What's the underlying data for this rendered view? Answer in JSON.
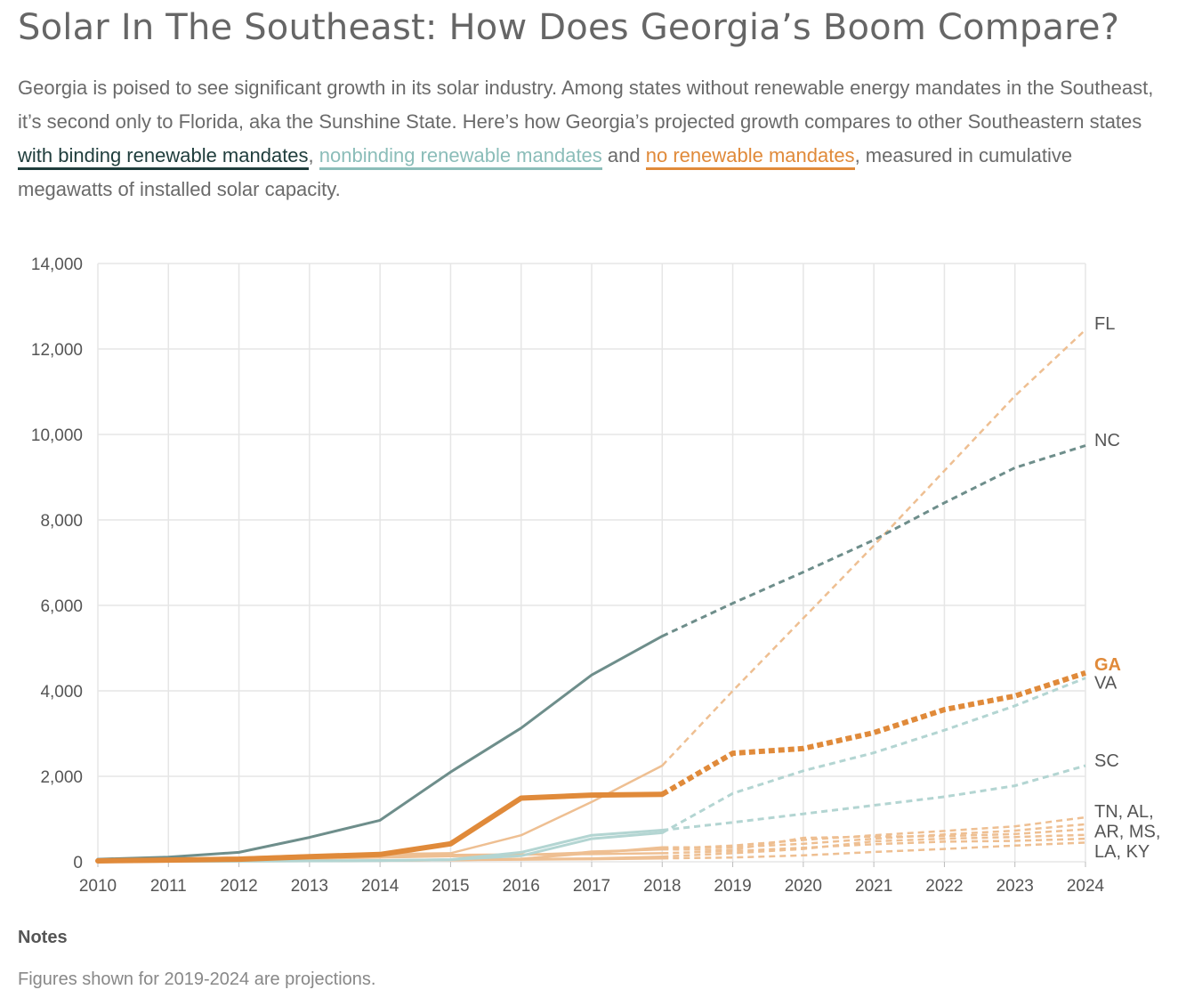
{
  "title": "Solar In The Southeast: How Does Georgia’s Boom Compare?",
  "intro": {
    "text_1": "Georgia is poised to see significant growth in its solar industry. Among states without renewable energy mandates in the Southeast, it’s second only to Florida, aka the Sunshine State. Here’s how Georgia’s projected growth compares to other Southeastern states ",
    "link_binding": "with binding renewable mandates",
    "sep_1": ", ",
    "link_nonbinding": "nonbinding renewable mandates",
    "sep_2": " and ",
    "link_none": "no renewable mandates",
    "text_2": ", measured in cumulative megawatts of installed solar capacity."
  },
  "colors": {
    "binding": "#6e8e8b",
    "binding_link": "#1f3d3c",
    "nonbinding": "#b3d5d2",
    "nonbinding_link": "#8bbdb9",
    "none": "#eebf92",
    "georgia": "#e08a3a",
    "label": "#555555",
    "grid": "#e6e6e6"
  },
  "chart_data": {
    "type": "line",
    "x": [
      2010,
      2011,
      2012,
      2013,
      2014,
      2015,
      2016,
      2017,
      2018,
      2019,
      2020,
      2021,
      2022,
      2023,
      2024
    ],
    "projection_start": 2018,
    "ylim": [
      0,
      14000
    ],
    "yticks": [
      0,
      2000,
      4000,
      6000,
      8000,
      10000,
      12000,
      14000
    ],
    "ytick_labels": [
      "0",
      "2,000",
      "4,000",
      "6,000",
      "8,000",
      "10,000",
      "12,000",
      "14,000"
    ],
    "xtick_labels": [
      "2010",
      "2011",
      "2012",
      "2013",
      "2014",
      "2015",
      "2016",
      "2017",
      "2018",
      "2019",
      "2020",
      "2021",
      "2022",
      "2023",
      "2024"
    ],
    "grid": true,
    "series": [
      {
        "name": "FL",
        "group": "none",
        "values": [
          40,
          60,
          100,
          150,
          180,
          200,
          620,
          1400,
          2250,
          4000,
          5700,
          7400,
          9150,
          10900,
          12450
        ]
      },
      {
        "name": "NC",
        "group": "binding",
        "values": [
          60,
          110,
          220,
          570,
          970,
          2100,
          3130,
          4370,
          5280,
          6050,
          6780,
          7530,
          8400,
          9220,
          9740
        ]
      },
      {
        "name": "GA",
        "group": "georgia",
        "values": [
          20,
          40,
          60,
          120,
          170,
          420,
          1490,
          1560,
          1580,
          2540,
          2650,
          3020,
          3560,
          3880,
          4420
        ]
      },
      {
        "name": "VA",
        "group": "nonbinding",
        "values": [
          5,
          10,
          15,
          20,
          30,
          50,
          140,
          540,
          680,
          1600,
          2130,
          2550,
          3080,
          3650,
          4300
        ]
      },
      {
        "name": "SC",
        "group": "nonbinding",
        "values": [
          5,
          10,
          15,
          20,
          30,
          50,
          220,
          620,
          740,
          920,
          1120,
          1320,
          1520,
          1780,
          2250
        ]
      },
      {
        "name": "TN",
        "group": "none",
        "values": [
          10,
          20,
          40,
          70,
          100,
          130,
          160,
          220,
          300,
          380,
          510,
          620,
          720,
          830,
          1040
        ]
      },
      {
        "name": "AL",
        "group": "none",
        "values": [
          5,
          10,
          15,
          20,
          30,
          40,
          70,
          200,
          340,
          340,
          420,
          540,
          640,
          730,
          880
        ]
      },
      {
        "name": "AR",
        "group": "none",
        "values": [
          5,
          10,
          15,
          20,
          30,
          40,
          60,
          240,
          290,
          280,
          560,
          590,
          600,
          650,
          760
        ]
      },
      {
        "name": "MS",
        "group": "none",
        "values": [
          5,
          10,
          15,
          20,
          30,
          40,
          60,
          80,
          120,
          200,
          300,
          480,
          540,
          580,
          630
        ]
      },
      {
        "name": "LA",
        "group": "none",
        "values": [
          20,
          40,
          80,
          120,
          150,
          160,
          170,
          180,
          200,
          250,
          330,
          410,
          470,
          490,
          540
        ]
      },
      {
        "name": "KY",
        "group": "none",
        "values": [
          5,
          10,
          15,
          20,
          30,
          40,
          50,
          60,
          80,
          100,
          150,
          230,
          300,
          380,
          450
        ]
      }
    ],
    "end_labels": [
      {
        "text": "FL",
        "anchor_value": 12600
      },
      {
        "text": "NC",
        "anchor_value": 9870
      },
      {
        "text": "GA",
        "anchor_value": 4620
      },
      {
        "text": "VA",
        "anchor_value": 4200
      },
      {
        "text": "SC",
        "anchor_value": 2370
      },
      {
        "text": "TN, AL,",
        "anchor_value": 1190
      },
      {
        "text": "AR, MS,",
        "anchor_value": 720
      },
      {
        "text": "LA, KY",
        "anchor_value": 250
      }
    ]
  },
  "notes": {
    "heading": "Notes",
    "text": "Figures shown for 2019-2024 are projections."
  }
}
